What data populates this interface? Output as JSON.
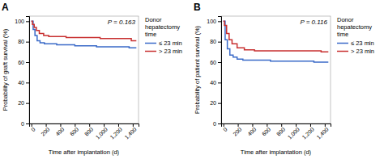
{
  "chart_data": [
    {
      "type": "step",
      "title": "A",
      "annotations": [
        "P = 0.163"
      ],
      "x_label": "Time after implantation (d)",
      "y_label": "Probability of graft survival (%)",
      "xlim": [
        -30,
        1480
      ],
      "xticks": [
        0,
        200,
        400,
        600,
        800,
        {
          "value": 1000,
          "label": "1,000"
        },
        {
          "value": 1200,
          "label": "1,200"
        },
        {
          "value": 1400,
          "label": "1,400"
        }
      ],
      "ylim": [
        0,
        105
      ],
      "yticks": [
        0,
        20,
        40,
        60,
        80,
        100
      ],
      "grid": false,
      "legend": "right",
      "legend_title": "Donor\nhepatectomy\ntime",
      "series": [
        {
          "name": "≤ 23 min",
          "color": "#3a6ac8",
          "x": [
            0,
            25,
            50,
            80,
            120,
            180,
            250,
            350,
            450,
            600,
            750,
            900,
            1050,
            1200,
            1350,
            1450
          ],
          "values": [
            100,
            92,
            86,
            81,
            79,
            78,
            78,
            77,
            77,
            76,
            76,
            75,
            75,
            75,
            74,
            74
          ]
        },
        {
          "name": "> 23 min",
          "color": "#c83030",
          "x": [
            0,
            15,
            40,
            70,
            110,
            170,
            240,
            340,
            480,
            650,
            800,
            950,
            1100,
            1250,
            1380,
            1450
          ],
          "values": [
            100,
            97,
            94,
            91,
            88,
            86,
            85,
            85,
            84,
            84,
            84,
            83,
            83,
            83,
            81,
            81
          ]
        }
      ]
    },
    {
      "type": "step",
      "title": "B",
      "annotations": [
        "P = 0.116"
      ],
      "x_label": "Time after implantation (d)",
      "y_label": "Probability of patient survival (%)",
      "xlim": [
        -30,
        1480
      ],
      "xticks": [
        0,
        200,
        400,
        600,
        800,
        {
          "value": 1000,
          "label": "1,000"
        },
        {
          "value": 1200,
          "label": "1,200"
        },
        {
          "value": 1400,
          "label": "1,400"
        }
      ],
      "ylim": [
        0,
        105
      ],
      "yticks": [
        0,
        20,
        40,
        60,
        80,
        100
      ],
      "grid": false,
      "legend": "right",
      "legend_title": "Donor\nhepatectomy\ntime",
      "series": [
        {
          "name": "≤ 23 min",
          "color": "#3a6ac8",
          "x": [
            0,
            25,
            55,
            90,
            135,
            190,
            270,
            370,
            500,
            650,
            800,
            950,
            1100,
            1250,
            1380,
            1450
          ],
          "values": [
            100,
            82,
            73,
            67,
            65,
            63,
            62,
            62,
            62,
            61,
            61,
            61,
            61,
            60,
            60,
            60
          ]
        },
        {
          "name": "> 23 min",
          "color": "#c83030",
          "x": [
            0,
            15,
            45,
            80,
            120,
            190,
            290,
            430,
            600,
            750,
            900,
            1050,
            1200,
            1350,
            1450
          ],
          "values": [
            100,
            96,
            88,
            82,
            78,
            74,
            72,
            71,
            71,
            71,
            71,
            71,
            71,
            70,
            70
          ]
        }
      ]
    }
  ]
}
